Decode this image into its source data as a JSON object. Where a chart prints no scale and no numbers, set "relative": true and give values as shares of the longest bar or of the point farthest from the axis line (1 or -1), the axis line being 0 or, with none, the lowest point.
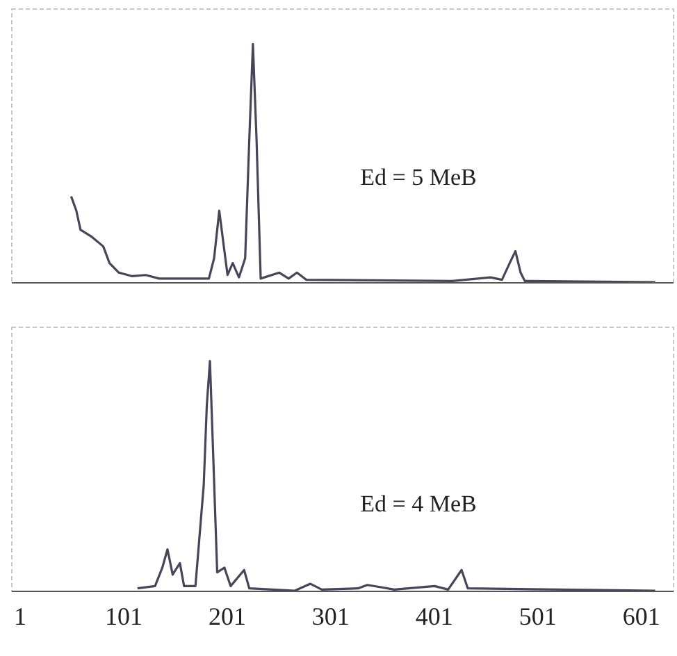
{
  "chart_data": [
    {
      "type": "line",
      "relative": true,
      "xlim": [
        -7,
        632
      ],
      "xticks": [
        1,
        101,
        201,
        301,
        401,
        501,
        601
      ],
      "tick_labels": false,
      "grid": false,
      "marker": "none",
      "line_style": "solid",
      "annotations": [
        "Ed = 5 MeB"
      ],
      "series": [
        {
          "color": "#4a4458",
          "x": [
            51,
            56,
            60,
            71,
            82,
            88,
            97,
            110,
            123,
            136,
            184,
            189,
            194,
            199,
            202,
            207,
            213,
            219,
            223,
            226.5,
            230,
            234,
            252,
            261,
            269,
            278,
            419,
            456,
            467,
            475,
            480,
            485,
            489,
            615
          ],
          "values": [
            0.36,
            0.3,
            0.22,
            0.19,
            0.15,
            0.08,
            0.04,
            0.025,
            0.03,
            0.015,
            0.015,
            0.1,
            0.3,
            0.13,
            0.03,
            0.08,
            0.02,
            0.1,
            0.6,
            1,
            0.6,
            0.015,
            0.04,
            0.015,
            0.04,
            0.01,
            0.005,
            0.02,
            0.01,
            0.085,
            0.13,
            0.04,
            0.005,
            0
          ]
        }
      ]
    },
    {
      "type": "line",
      "relative": true,
      "xlim": [
        -7,
        632
      ],
      "xticks": [
        1,
        101,
        201,
        301,
        401,
        501,
        601
      ],
      "tick_labels": "x",
      "grid": false,
      "marker": "none",
      "line_style": "solid",
      "annotations": [
        "Ed = 4 MeB"
      ],
      "series": [
        {
          "color": "#4a4458",
          "x": [
            115,
            132,
            139,
            144,
            149,
            156,
            160,
            171,
            179,
            182,
            185,
            188,
            192,
            199,
            205,
            218,
            223,
            267,
            282,
            293,
            328,
            337,
            350,
            363,
            402,
            415,
            428,
            434,
            615
          ],
          "values": [
            0.01,
            0.02,
            0.1,
            0.18,
            0.07,
            0.12,
            0.02,
            0.02,
            0.46,
            0.81,
            1,
            0.61,
            0.08,
            0.1,
            0.02,
            0.09,
            0.01,
            0,
            0.03,
            0.005,
            0.01,
            0.025,
            0.015,
            0.005,
            0.02,
            0.005,
            0.09,
            0.01,
            0
          ]
        }
      ]
    }
  ]
}
